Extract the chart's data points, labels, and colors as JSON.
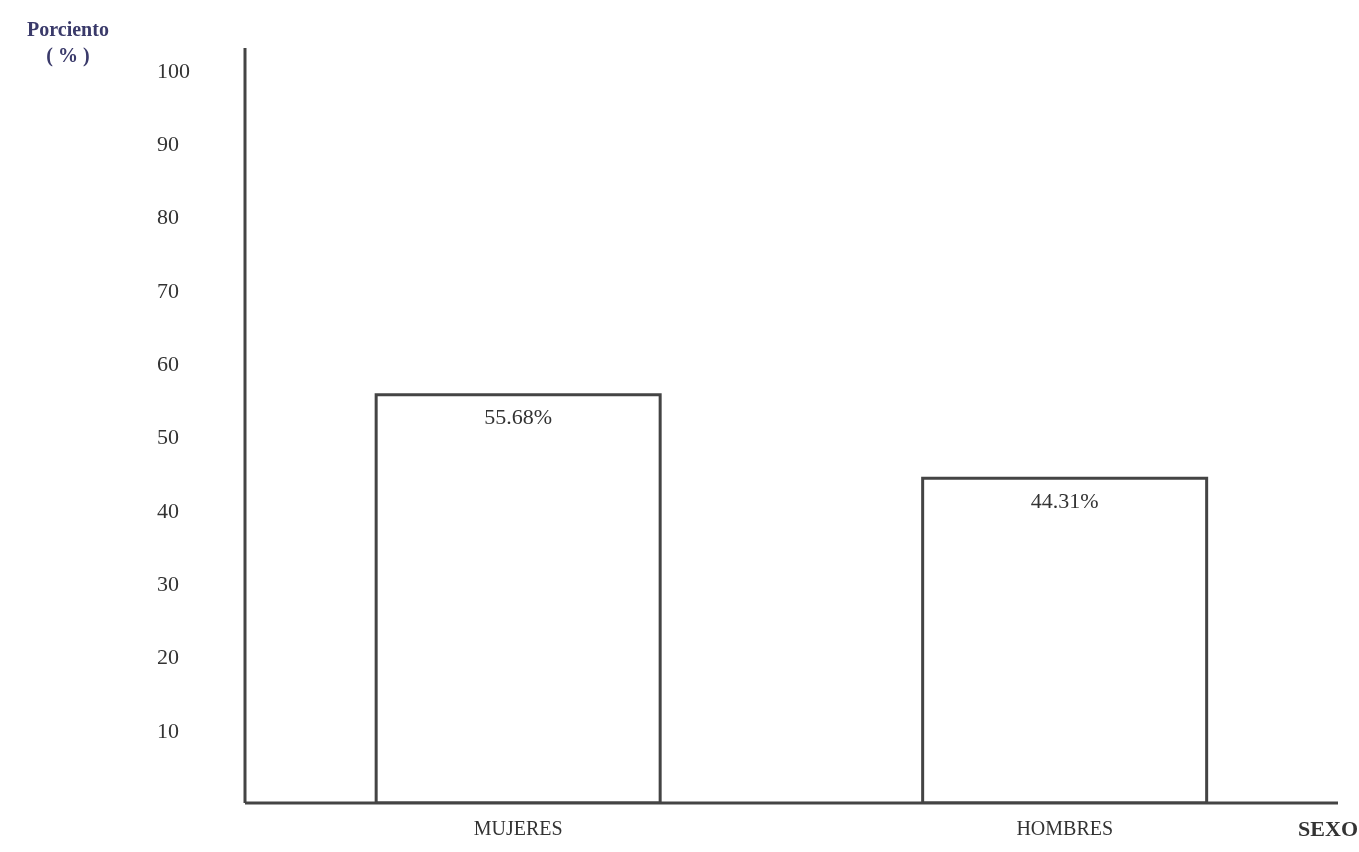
{
  "chart_data": {
    "type": "bar",
    "xlabel": "SEXO",
    "ylabel": "Porciento\n( % )",
    "categories": [
      "MUJERES",
      "HOMBRES"
    ],
    "values": [
      55.68,
      44.31
    ],
    "value_labels": [
      "55.68%",
      "44.31%"
    ],
    "color": "#ffffff",
    "ylim": [
      0,
      103
    ],
    "yticks": [
      10,
      20,
      30,
      40,
      50,
      60,
      70,
      80,
      90,
      100
    ]
  }
}
